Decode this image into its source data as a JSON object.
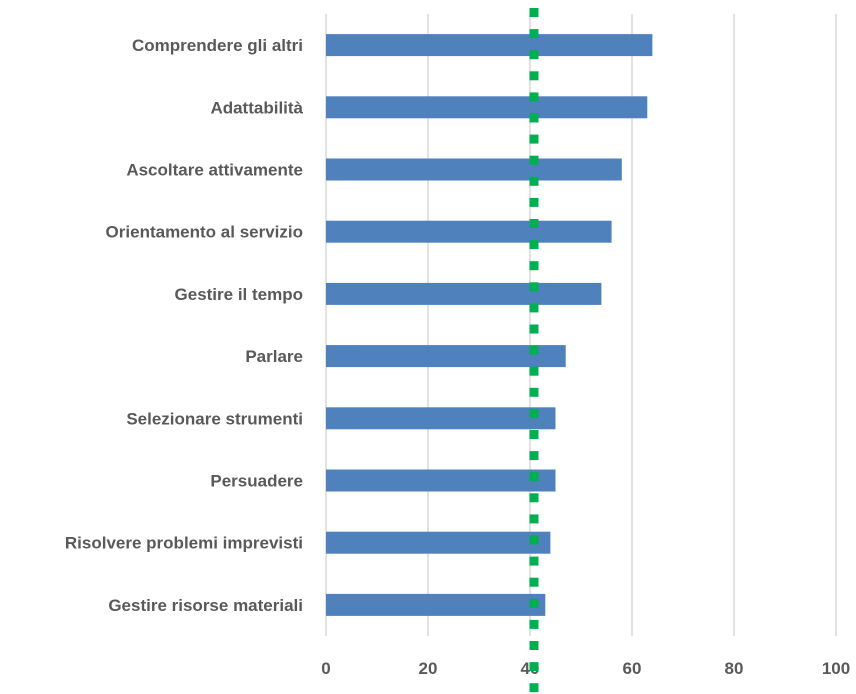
{
  "chart_data": {
    "type": "bar",
    "orientation": "horizontal",
    "categories": [
      "Comprendere gli altri",
      "Adattabilità",
      "Ascoltare attivamente",
      "Orientamento al servizio",
      "Gestire il tempo",
      "Parlare",
      "Selezionare strumenti",
      "Persuadere",
      "Risolvere problemi imprevisti",
      "Gestire risorse materiali"
    ],
    "values": [
      64,
      63,
      58,
      56,
      54,
      47,
      45,
      45,
      44,
      43
    ],
    "xlim": [
      0,
      100
    ],
    "x_ticks": [
      0,
      20,
      40,
      60,
      80,
      100
    ],
    "x_tick_labels": [
      "0",
      "20",
      "40",
      "60",
      "80",
      "100"
    ],
    "reference_line": {
      "x": 40,
      "style": "dotted",
      "color": "#00B050"
    },
    "grid": "vertical",
    "bar_color": "#4F81BD",
    "grid_color": "#D9D9D9",
    "text_color": "#595959",
    "title": "",
    "xlabel": "",
    "ylabel": ""
  }
}
